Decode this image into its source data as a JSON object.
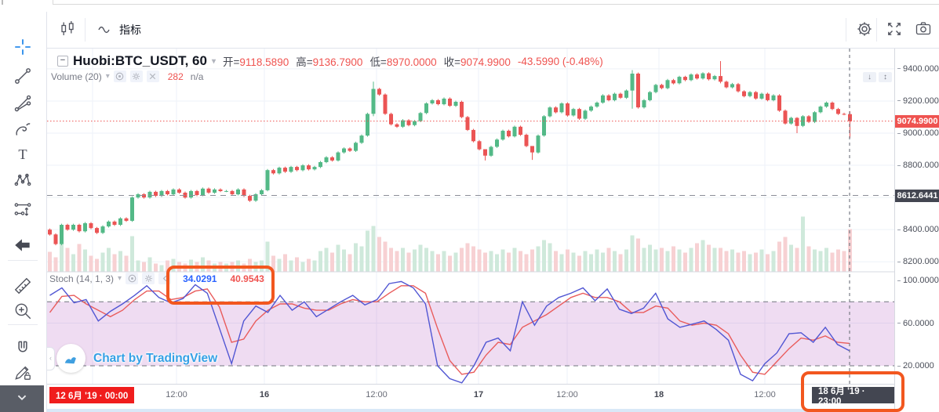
{
  "top_toolbar": {
    "indicator_label": "指标"
  },
  "header": {
    "collapse_glyph": "−",
    "symbol": "Huobi:BTC_USDT, 60",
    "open_label": "开=",
    "open": "9118.5890",
    "high_label": "高=",
    "high": "9136.7900",
    "low_label": "低=",
    "low": "8970.0000",
    "close_label": "收=",
    "close": "9074.9900",
    "change": "-43.5990 (-0.48%)"
  },
  "volume_legend": {
    "label": "Volume (20)",
    "value": "282",
    "na": "n/a"
  },
  "stoch_legend": {
    "label": "Stoch (14, 1, 3)",
    "k_value": "34.0291",
    "d_value": "40.9543"
  },
  "watermark": {
    "text": "Chart by TradingView"
  },
  "pane_buttons": {
    "down": "↓",
    "updown": "↕"
  },
  "panel_handle_glyph": "‹",
  "price_axis": {
    "ticks": [
      [
        "9400.0000",
        9400
      ],
      [
        "9200.0000",
        9200
      ],
      [
        "9000.0000",
        9000
      ],
      [
        "8800.0000",
        8800
      ],
      [
        "8400.0000",
        8400
      ],
      [
        "8200.0000",
        8200
      ]
    ],
    "price_tag": {
      "text": "9074.9900"
    },
    "level_tag": {
      "text": "8612.6441"
    }
  },
  "stoch_axis": {
    "ticks": [
      [
        "100.0000",
        100
      ],
      [
        "60.0000",
        60
      ],
      [
        "20.0000",
        20
      ]
    ]
  },
  "time_axis": {
    "ticks": [
      [
        "12:00",
        225,
        0
      ],
      [
        "16",
        337,
        1
      ],
      [
        "12:00",
        480,
        0
      ],
      [
        "17",
        610,
        1
      ],
      [
        "12:00",
        723,
        0
      ],
      [
        "18",
        840,
        1
      ],
      [
        "12:00",
        975,
        0
      ]
    ],
    "left_tag": "12 6月 '19 · 00:00",
    "right_tag": "18 6月 '19 · 23:00"
  },
  "colors": {
    "up": "#53b987",
    "down": "#eb5454",
    "vol_up": "#cfe9db",
    "vol_down": "#f7d1d3",
    "k_line": "#5156d3",
    "d_line": "#e95c5c",
    "band": "rgba(156,39,176,0.16)",
    "band_edge": "#70747e",
    "price_line": "#ef5350",
    "level_line": "#8b8e98",
    "grid": "#eef2f8",
    "cursor": "#787b86",
    "tag_red": "#ef5350",
    "tag_dark": "#434651",
    "accent_blue": "#2a8ceb",
    "annotation": "#f2571f"
  },
  "tools": [
    {
      "id": "crosshair",
      "active": true
    },
    {
      "id": "trend-line"
    },
    {
      "id": "gann-fib"
    },
    {
      "id": "brush"
    },
    {
      "id": "text"
    },
    {
      "id": "xabcd-pattern"
    },
    {
      "id": "long-position"
    },
    {
      "id": "back-arrow"
    },
    {
      "id": "ruler"
    },
    {
      "id": "zoom-in"
    },
    {
      "id": "magnet"
    },
    {
      "id": "pencil-lock"
    },
    {
      "id": "lock"
    }
  ],
  "chart_data": {
    "type": "candlestick",
    "symbol": "Huobi:BTC_USDT",
    "interval_minutes": 60,
    "visible_range": {
      "from": "12 6月 '19 00:00",
      "to": "18 6月 '19 23:00"
    },
    "price_axis_ticks": [
      9400,
      9200,
      9000,
      8800,
      8400,
      8200
    ],
    "last_price": 9074.99,
    "level_line_price": 8612.6441,
    "ohlc_last": {
      "open": 9118.589,
      "high": 9136.79,
      "low": 8970.0,
      "close": 9074.99,
      "change": -43.599,
      "change_pct": -0.48
    },
    "first_open": 8400,
    "closes": [
      8370,
      8310,
      8430,
      8400,
      8430,
      8390,
      8440,
      8410,
      8380,
      8420,
      8450,
      8430,
      8470,
      8455,
      8600,
      8620,
      8600,
      8635,
      8610,
      8640,
      8620,
      8650,
      8630,
      8600,
      8640,
      8615,
      8655,
      8630,
      8650,
      8640,
      8640,
      8620,
      8650,
      8610,
      8580,
      8620,
      8645,
      8770,
      8750,
      8785,
      8760,
      8790,
      8770,
      8800,
      8775,
      8790,
      8820,
      8850,
      8830,
      8880,
      8905,
      8890,
      8940,
      8985,
      9120,
      9275,
      9240,
      9120,
      9055,
      9040,
      9080,
      9050,
      9075,
      9125,
      9185,
      9205,
      9180,
      9215,
      9170,
      9195,
      9100,
      9020,
      8950,
      8900,
      8860,
      8915,
      8960,
      9015,
      8980,
      9040,
      8990,
      8920,
      8880,
      8985,
      9105,
      9160,
      9130,
      9185,
      9110,
      9150,
      9090,
      9140,
      9165,
      9190,
      9235,
      9205,
      9245,
      9220,
      9265,
      9370,
      9160,
      9205,
      9255,
      9300,
      9280,
      9330,
      9310,
      9350,
      9330,
      9365,
      9340,
      9372,
      9335,
      9355,
      9320,
      9285,
      9305,
      9260,
      9230,
      9255,
      9215,
      9245,
      9205,
      9235,
      9140,
      9060,
      9095,
      9045,
      9105,
      9070,
      9130,
      9165,
      9190,
      9150,
      9120,
      9118.59,
      9074.99
    ],
    "wick_overrides": {
      "55": [
        9320,
        9105
      ],
      "74": [
        8872,
        8830
      ],
      "82": [
        8892,
        8834
      ],
      "99": [
        9392,
        9152
      ],
      "114": [
        9448,
        9310
      ],
      "127": [
        9100,
        9000
      ],
      "136": [
        9136.79,
        8970
      ]
    },
    "volumes": [
      25,
      18,
      40,
      30,
      22,
      35,
      28,
      20,
      16,
      24,
      30,
      22,
      26,
      20,
      45,
      14,
      12,
      18,
      10,
      8,
      14,
      16,
      12,
      10,
      15,
      12,
      18,
      14,
      10,
      12,
      10,
      12,
      14,
      10,
      16,
      12,
      14,
      38,
      20,
      16,
      22,
      14,
      18,
      12,
      16,
      14,
      26,
      30,
      24,
      34,
      28,
      22,
      36,
      32,
      52,
      58,
      44,
      38,
      30,
      26,
      30,
      24,
      28,
      34,
      30,
      26,
      22,
      26,
      20,
      24,
      30,
      36,
      32,
      28,
      24,
      26,
      22,
      28,
      24,
      30,
      26,
      22,
      28,
      32,
      40,
      36,
      26,
      22,
      28,
      24,
      20,
      26,
      22,
      28,
      24,
      30,
      26,
      22,
      28,
      46,
      42,
      30,
      34,
      28,
      30,
      26,
      32,
      28,
      24,
      30,
      36,
      40,
      34,
      30,
      30,
      26,
      28,
      24,
      26,
      22,
      24,
      28,
      22,
      26,
      38,
      44,
      34,
      30,
      70,
      32,
      28,
      26,
      30,
      24,
      28,
      26,
      54
    ],
    "stoch": {
      "params": [
        14,
        1,
        3
      ],
      "k_last": 34.0291,
      "d_last": 40.9543,
      "overbought": 80,
      "oversold": 20,
      "k": [
        86,
        93,
        79,
        82,
        62,
        71,
        78,
        86,
        95,
        84,
        79,
        83,
        96,
        88,
        55,
        22,
        62,
        76,
        70,
        86,
        72,
        80,
        66,
        73,
        80,
        86,
        77,
        82,
        97,
        99,
        93,
        78,
        20,
        8,
        4,
        20,
        42,
        46,
        34,
        80,
        58,
        76,
        84,
        88,
        93,
        81,
        92,
        73,
        69,
        74,
        88,
        64,
        56,
        59,
        62,
        54,
        44,
        12,
        6,
        22,
        32,
        50,
        51,
        42,
        56,
        40,
        34
      ],
      "d": [
        70,
        85,
        86,
        78,
        72,
        66,
        72,
        82,
        90,
        90,
        82,
        84,
        90,
        92,
        75,
        42,
        45,
        62,
        72,
        78,
        78,
        74,
        72,
        72,
        78,
        82,
        80,
        80,
        88,
        95,
        95,
        88,
        55,
        25,
        12,
        14,
        30,
        42,
        40,
        56,
        62,
        68,
        76,
        84,
        88,
        84,
        84,
        80,
        70,
        70,
        76,
        74,
        62,
        58,
        60,
        58,
        50,
        30,
        14,
        12,
        24,
        36,
        46,
        44,
        48,
        42,
        41
      ]
    }
  }
}
